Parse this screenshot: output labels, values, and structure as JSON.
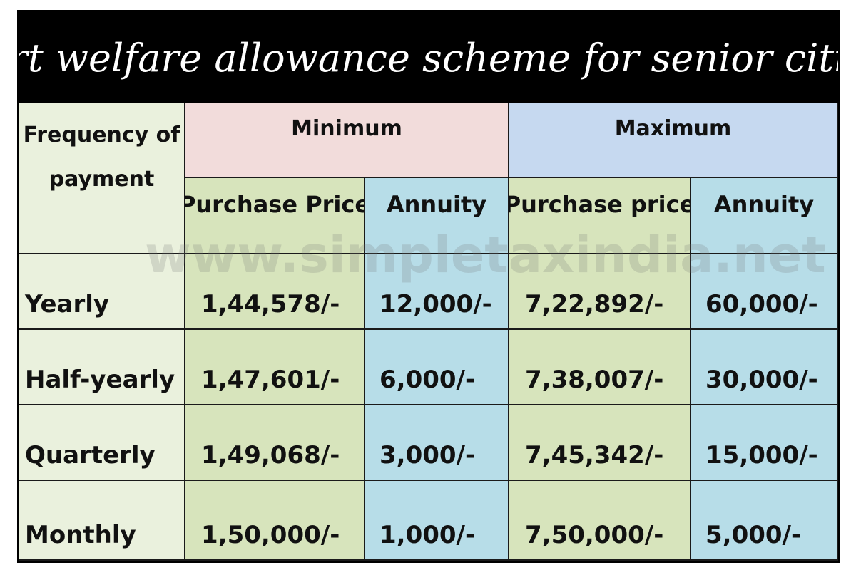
{
  "title": "Smart welfare allowance scheme for senior citizens",
  "watermark": "www.simpletaxindia.net",
  "table": {
    "frequency_header_line1": "Frequency of",
    "frequency_header_line2": "payment",
    "minimum_header": "Minimum",
    "maximum_header": "Maximum",
    "min_purchase_header": "Purchase Price",
    "min_annuity_header": "Annuity",
    "max_purchase_header": "Purchase price",
    "max_annuity_header": "Annuity",
    "rows": [
      {
        "frequency": "Yearly",
        "min_purchase": "1,44,578/-",
        "min_annuity": "12,000/-",
        "max_purchase": "7,22,892/-",
        "max_annuity": "60,000/-"
      },
      {
        "frequency": "Half-yearly",
        "min_purchase": "1,47,601/-",
        "min_annuity": "6,000/-",
        "max_purchase": "7,38,007/-",
        "max_annuity": "30,000/-"
      },
      {
        "frequency": "Quarterly",
        "min_purchase": "1,49,068/-",
        "min_annuity": "3,000/-",
        "max_purchase": "7,45,342/-",
        "max_annuity": "15,000/-"
      },
      {
        "frequency": "Monthly",
        "min_purchase": "1,50,000/-",
        "min_annuity": "1,000/-",
        "max_purchase": "7,50,000/-",
        "max_annuity": "5,000/-"
      }
    ]
  },
  "colors": {
    "title_bg": "#000000",
    "title_text": "#ffffff",
    "minimum_header_bg": "#f2dcdb",
    "maximum_header_bg": "#c6d9f0",
    "purchase_col_bg": "#d7e4bc",
    "annuity_col_bg": "#b7dde8",
    "frequency_col_bg": "#eaf1dd"
  }
}
